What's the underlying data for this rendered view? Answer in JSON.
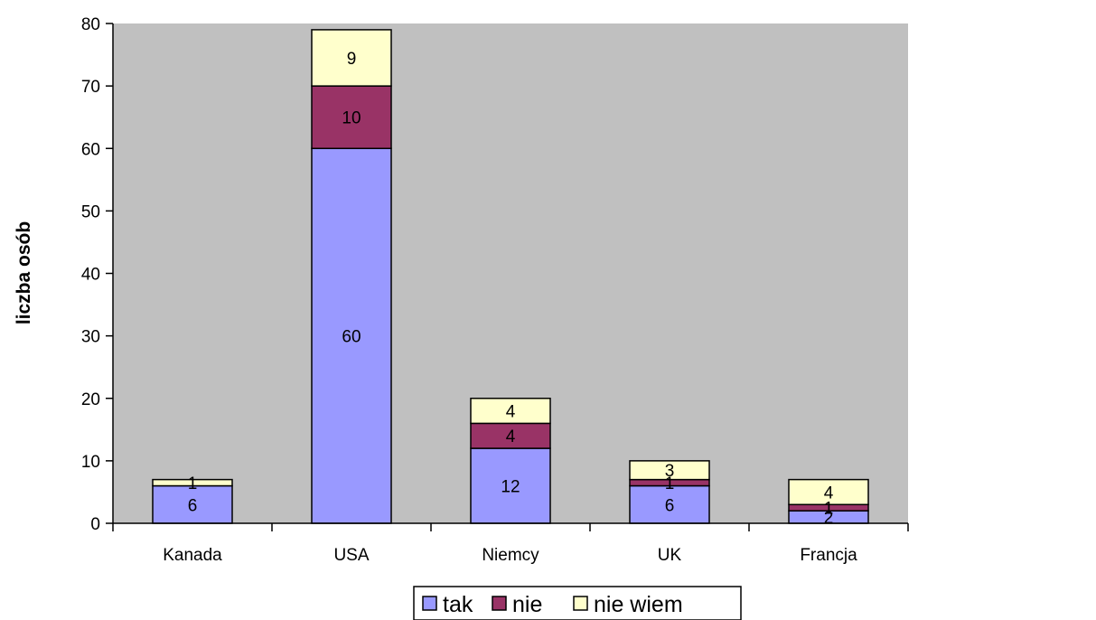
{
  "chart_data": {
    "type": "bar",
    "stacked": true,
    "categories": [
      "Kanada",
      "USA",
      "Niemcy",
      "UK",
      "Francja"
    ],
    "series": [
      {
        "name": "tak",
        "values": [
          6,
          60,
          12,
          6,
          2
        ],
        "color": "#9999FF"
      },
      {
        "name": "nie",
        "values": [
          0,
          10,
          4,
          1,
          1
        ],
        "color": "#993366"
      },
      {
        "name": "nie wiem",
        "values": [
          1,
          9,
          4,
          3,
          4
        ],
        "color": "#FFFFCC"
      }
    ],
    "data_labels": [
      [
        "6",
        "60",
        "12",
        "6",
        "2"
      ],
      [
        "",
        "10",
        "4",
        "1",
        "1"
      ],
      [
        "1",
        "9",
        "4",
        "3",
        "4"
      ]
    ],
    "ylabel": "liczba osób",
    "xlabel": "",
    "ylim": [
      0,
      80
    ],
    "yticks": [
      0,
      10,
      20,
      30,
      40,
      50,
      60,
      70,
      80
    ],
    "plot_background": "#C0C0C0",
    "grid": false,
    "legend_position": "bottom"
  }
}
